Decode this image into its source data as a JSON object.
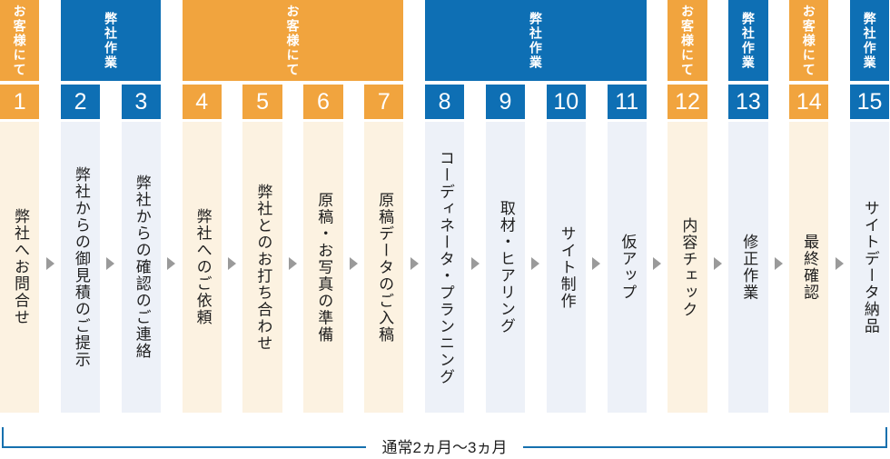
{
  "palette": {
    "customer": "#F1A43E",
    "customer_light": "#FCF2E1",
    "company": "#0E6FB4",
    "company_light": "#EDF1F8",
    "arrow": "#9A9A9A",
    "bracket": "#1670AE",
    "text": "#1E1E1E"
  },
  "groups": [
    {
      "label": "お客様にて",
      "type": "customer",
      "start": 1,
      "end": 1
    },
    {
      "label": "弊社作業",
      "type": "company",
      "start": 2,
      "end": 3
    },
    {
      "label": "お客様にて",
      "type": "customer",
      "start": 4,
      "end": 7
    },
    {
      "label": "弊社作業",
      "type": "company",
      "start": 8,
      "end": 11
    },
    {
      "label": "お客様にて",
      "type": "customer",
      "start": 12,
      "end": 12
    },
    {
      "label": "弊社作業",
      "type": "company",
      "start": 13,
      "end": 13
    },
    {
      "label": "お客様にて",
      "type": "customer",
      "start": 14,
      "end": 14
    },
    {
      "label": "弊社作業",
      "type": "company",
      "start": 15,
      "end": 15
    }
  ],
  "steps": [
    {
      "number": "1",
      "label": "弊社へお問合せ",
      "type": "customer"
    },
    {
      "number": "2",
      "label": "弊社からの御見積のご提示",
      "type": "company"
    },
    {
      "number": "3",
      "label": "弊社からの確認のご連絡",
      "type": "company"
    },
    {
      "number": "4",
      "label": "弊社へのご依頼",
      "type": "customer"
    },
    {
      "number": "5",
      "label": "弊社とのお打ち合わせ",
      "type": "customer"
    },
    {
      "number": "6",
      "label": "原稿・お写真の準備",
      "type": "customer"
    },
    {
      "number": "7",
      "label": "原稿データのご入稿",
      "type": "customer"
    },
    {
      "number": "8",
      "label": "コーディネータ・プランニング",
      "type": "company"
    },
    {
      "number": "9",
      "label": "取材・ヒアリング",
      "type": "company"
    },
    {
      "number": "10",
      "label": "サイト制作",
      "type": "company"
    },
    {
      "number": "11",
      "label": "仮アップ",
      "type": "company"
    },
    {
      "number": "12",
      "label": "内容チェック",
      "type": "customer"
    },
    {
      "number": "13",
      "label": "修正作業",
      "type": "company"
    },
    {
      "number": "14",
      "label": "最終確認",
      "type": "customer"
    },
    {
      "number": "15",
      "label": "サイトデータ納品",
      "type": "company"
    }
  ],
  "timeline": {
    "label": "通常2ヵ月～3ヵ月"
  }
}
